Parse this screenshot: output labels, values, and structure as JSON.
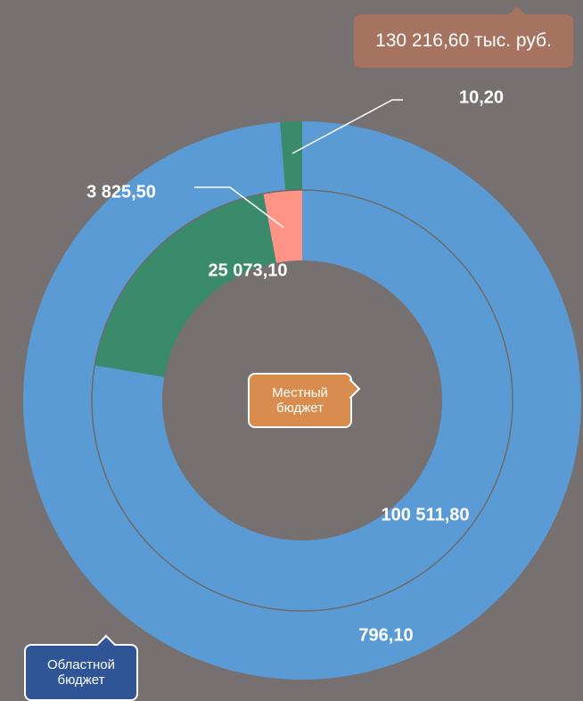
{
  "chart_data": {
    "type": "donut",
    "annotation": "130 216,60 тыс. руб.",
    "series": [
      {
        "name": "Местный бюджет",
        "values": [
          100511.8,
          25073.1,
          3825.5
        ],
        "value_labels": [
          "100 511,80",
          "25 073,10",
          "3 825,50"
        ],
        "colors": [
          "#5b9bd5",
          "#3a8a6c",
          "#ff9486"
        ]
      },
      {
        "name": "Областной бюджет",
        "values": [
          796.1,
          10.2
        ],
        "value_labels": [
          "796,10",
          "10,20"
        ],
        "colors": [
          "#5b9bd5",
          "#3a8a6c"
        ]
      }
    ]
  }
}
